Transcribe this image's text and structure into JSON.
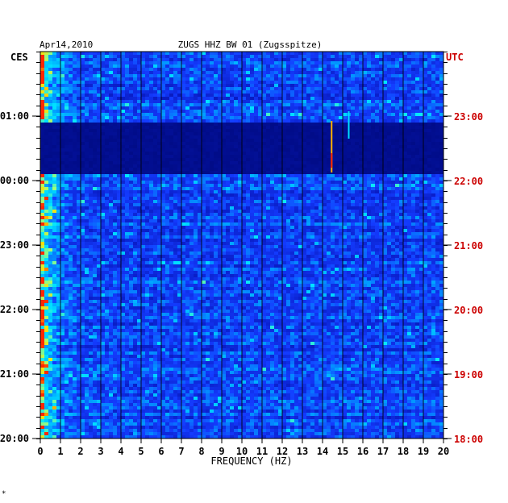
{
  "chart_data": {
    "type": "heatmap",
    "title": "ZUGS HHZ BW 01 (Zugsspitze)",
    "date": "Apr14,2010",
    "xlabel": "FREQUENCY (HZ)",
    "left_tz": "CES",
    "right_tz": "UTC",
    "xlim": [
      0,
      20
    ],
    "x_ticks": [
      "0",
      "1",
      "2",
      "3",
      "4",
      "5",
      "6",
      "7",
      "8",
      "9",
      "10",
      "11",
      "12",
      "13",
      "14",
      "15",
      "16",
      "17",
      "18",
      "19",
      "20"
    ],
    "left_time_labels": [
      "01:00",
      "00:00",
      "23:00",
      "22:00",
      "21:00",
      "20:00"
    ],
    "right_time_labels": [
      "23:00",
      "22:00",
      "21:00",
      "20:00",
      "19:00",
      "18:00"
    ],
    "grid": true,
    "colors": {
      "low": "#000c8a",
      "mid": "#1a3cff",
      "high": "#00e0ff",
      "peak": "#ffd200",
      "max": "#ff2000",
      "utc_label": "#cc0000"
    }
  },
  "footnote": "*"
}
